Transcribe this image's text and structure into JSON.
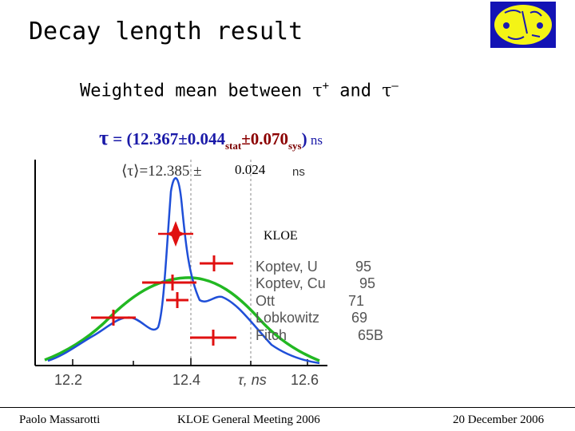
{
  "slide": {
    "title": "Decay length result",
    "subtitle_prefix": "Weighted mean between ",
    "subtitle_tau_plus": "τ",
    "subtitle_plus_sign": "+",
    "subtitle_and": " and ",
    "subtitle_tau_minus": "τ",
    "subtitle_minus_sign": "–",
    "formula": {
      "tau": "τ",
      "main": " = (12.367±0.044",
      "stat_sub": "stat",
      "sys_val": "±0.070",
      "sys_sub": "sys",
      "close": ")",
      "unit": " ns"
    },
    "logo_icon": "kloe-logo-icon"
  },
  "plot": {
    "mean_label": "⟨τ⟩=12.385 ±",
    "mean_err": " 0.024",
    "mean_unit": "ns",
    "kloe_label": "KLOE",
    "experiments": [
      {
        "name": "Koptev, U",
        "ref": "95"
      },
      {
        "name": "Koptev, Cu",
        "ref": "95"
      },
      {
        "name": "Ott",
        "ref": "71"
      },
      {
        "name": "Lobkowitz",
        "ref": "69"
      },
      {
        "name": "Fitch",
        "ref": "65B"
      }
    ],
    "x_ticks": [
      "12.2",
      "12.4",
      "τ,  ns",
      "12.6"
    ],
    "colors": {
      "green": "#22b822",
      "blue": "#1f4fd8",
      "red": "#e01010"
    }
  },
  "footer": {
    "author": "Paolo Massarotti",
    "meeting": "KLOE General Meeting 2006",
    "date": "20 December 2006"
  }
}
